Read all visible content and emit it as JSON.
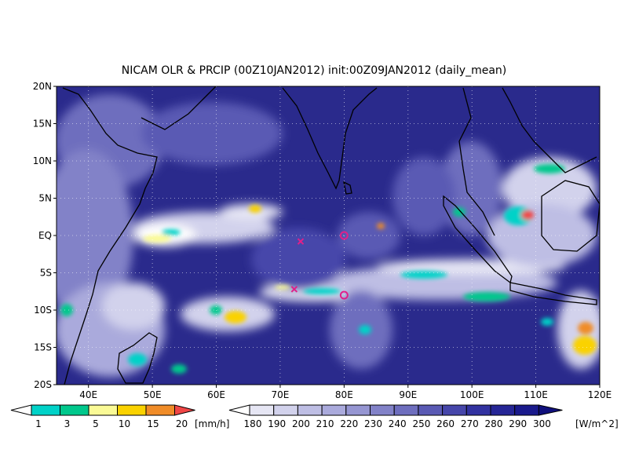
{
  "title": "NICAM OLR & PRCIP (00Z10JAN2012) init:00Z09JAN2012 (daily_mean)",
  "map": {
    "lat_labels": [
      "20N",
      "15N",
      "10N",
      "5N",
      "EQ",
      "5S",
      "10S",
      "15S",
      "20S"
    ],
    "lat_values": [
      20,
      15,
      10,
      5,
      0,
      -5,
      -10,
      -15,
      -20
    ],
    "lon_labels": [
      "40E",
      "50E",
      "60E",
      "70E",
      "80E",
      "90E",
      "100E",
      "110E",
      "120E"
    ],
    "lon_values": [
      40,
      50,
      60,
      70,
      80,
      90,
      100,
      110,
      120
    ],
    "lon_range": [
      35,
      120
    ],
    "lat_range": [
      -20,
      20
    ],
    "markers": [
      {
        "type": "x",
        "lon": 73.2,
        "lat": -0.8,
        "color": "#e0208a"
      },
      {
        "type": "circle",
        "lon": 80.0,
        "lat": 0.0,
        "color": "#e0208a"
      },
      {
        "type": "circle",
        "lon": 80.0,
        "lat": -8.0,
        "color": "#e0208a"
      },
      {
        "type": "x",
        "lon": 72.2,
        "lat": -7.2,
        "color": "#e0208a"
      }
    ],
    "ocean_color": "#2a2a8c",
    "coast_color": "#000000"
  },
  "precip_legend": {
    "labels": [
      "1",
      "3",
      "5",
      "10",
      "15",
      "20"
    ],
    "unit": "[mm/h]",
    "colors": [
      "#00d2c8",
      "#00c88c",
      "#fafa96",
      "#fad200",
      "#f08c28",
      "#f04646"
    ]
  },
  "olr_legend": {
    "labels": [
      "180",
      "190",
      "200",
      "210",
      "220",
      "230",
      "240",
      "250",
      "260",
      "270",
      "280",
      "290",
      "300"
    ],
    "unit": "[W/m^2]",
    "colors": [
      "#ffffff",
      "#e6e6f4",
      "#d2d2ec",
      "#bebee4",
      "#aaaadc",
      "#9696d2",
      "#8282c8",
      "#6e6ebe",
      "#5a5ab4",
      "#4646aa",
      "#3232a0",
      "#262696",
      "#1a1a8c",
      "#10107c"
    ]
  }
}
